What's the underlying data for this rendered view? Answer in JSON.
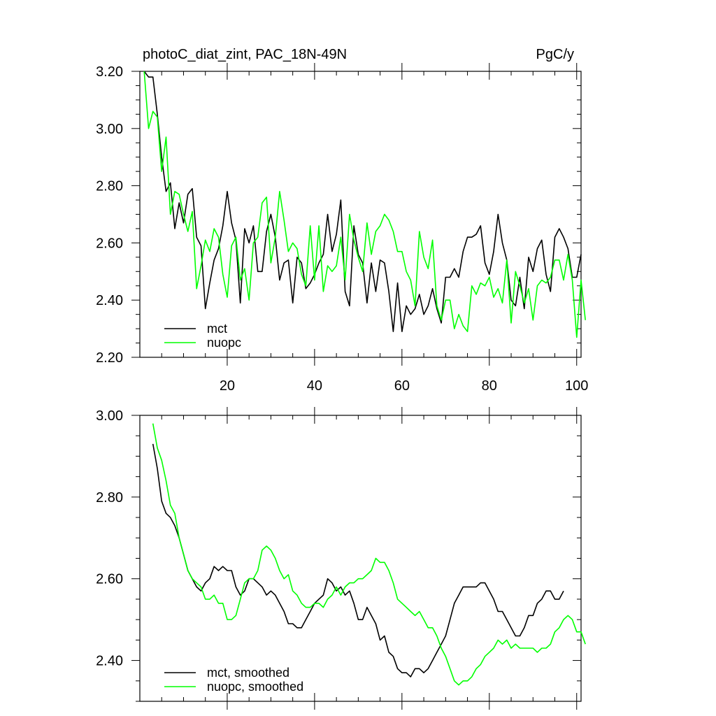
{
  "chart_data": [
    {
      "type": "line",
      "title": "photoC_diat_zint, PAC_18N-49N",
      "units": "PgC/y",
      "xlim": [
        0,
        101
      ],
      "ylim": [
        2.2,
        3.2
      ],
      "xticks": [
        20,
        40,
        60,
        80,
        100
      ],
      "yticks": [
        2.2,
        2.4,
        2.6,
        2.8,
        3.0,
        3.2
      ],
      "xtick_labels": [
        "20",
        "40",
        "60",
        "80",
        "100"
      ],
      "ytick_labels": [
        "2.20",
        "2.40",
        "2.60",
        "2.80",
        "3.00",
        "3.20"
      ],
      "legend_position": "bottom-left",
      "series": [
        {
          "name": "mct",
          "color": "#000000",
          "x_start": 1,
          "values": [
            3.2,
            3.18,
            3.18,
            3.05,
            2.9,
            2.78,
            2.81,
            2.65,
            2.74,
            2.67,
            2.77,
            2.79,
            2.62,
            2.59,
            2.37,
            2.46,
            2.54,
            2.58,
            2.66,
            2.78,
            2.67,
            2.61,
            2.39,
            2.65,
            2.6,
            2.66,
            2.5,
            2.5,
            2.64,
            2.7,
            2.62,
            2.47,
            2.53,
            2.54,
            2.39,
            2.55,
            2.53,
            2.44,
            2.46,
            2.49,
            2.53,
            2.56,
            2.7,
            2.57,
            2.63,
            2.75,
            2.43,
            2.38,
            2.66,
            2.56,
            2.53,
            2.39,
            2.53,
            2.43,
            2.54,
            2.53,
            2.43,
            2.29,
            2.46,
            2.29,
            2.38,
            2.35,
            2.37,
            2.42,
            2.35,
            2.38,
            2.44,
            2.37,
            2.32,
            2.48,
            2.48,
            2.51,
            2.48,
            2.57,
            2.62,
            2.62,
            2.63,
            2.66,
            2.53,
            2.49,
            2.57,
            2.7,
            2.6,
            2.54,
            2.4,
            2.38,
            2.48,
            2.37,
            2.55,
            2.5,
            2.58,
            2.61,
            2.49,
            2.43,
            2.62,
            2.65,
            2.62,
            2.58,
            2.48,
            2.48,
            2.56
          ]
        },
        {
          "name": "nuopc",
          "color": "#00ff00",
          "x_start": 1,
          "values": [
            3.2,
            3.0,
            3.06,
            3.04,
            2.85,
            2.97,
            2.7,
            2.78,
            2.77,
            2.7,
            2.64,
            2.71,
            2.44,
            2.52,
            2.61,
            2.57,
            2.65,
            2.62,
            2.49,
            2.41,
            2.59,
            2.62,
            2.47,
            2.51,
            2.4,
            2.6,
            2.62,
            2.74,
            2.76,
            2.53,
            2.62,
            2.78,
            2.68,
            2.57,
            2.6,
            2.58,
            2.49,
            2.45,
            2.66,
            2.47,
            2.66,
            2.43,
            2.52,
            2.5,
            2.52,
            2.62,
            2.47,
            2.7,
            2.61,
            2.55,
            2.5,
            2.67,
            2.56,
            2.64,
            2.66,
            2.7,
            2.68,
            2.64,
            2.57,
            2.57,
            2.5,
            2.47,
            2.38,
            2.64,
            2.55,
            2.51,
            2.61,
            2.38,
            2.33,
            2.4,
            2.4,
            2.3,
            2.35,
            2.31,
            2.29,
            2.45,
            2.42,
            2.46,
            2.45,
            2.48,
            2.41,
            2.44,
            2.39,
            2.54,
            2.32,
            2.5,
            2.45,
            2.39,
            2.44,
            2.33,
            2.45,
            2.47,
            2.46,
            2.48,
            2.54,
            2.54,
            2.47,
            2.56,
            2.47,
            2.27,
            2.47,
            2.33
          ]
        }
      ]
    },
    {
      "type": "line",
      "title": "",
      "xlim": [
        0,
        101
      ],
      "ylim": [
        2.3,
        3.0
      ],
      "xticks": [
        20,
        40,
        60,
        80,
        100
      ],
      "yticks": [
        2.4,
        2.6,
        2.8,
        3.0
      ],
      "ytick_labels": [
        "2.40",
        "2.60",
        "2.80",
        "3.00"
      ],
      "legend_position": "bottom-left",
      "series": [
        {
          "name": "mct, smoothed",
          "color": "#000000",
          "x_start": 3,
          "values": [
            2.93,
            2.87,
            2.79,
            2.76,
            2.75,
            2.73,
            2.7,
            2.66,
            2.62,
            2.6,
            2.58,
            2.57,
            2.59,
            2.6,
            2.63,
            2.62,
            2.63,
            2.62,
            2.62,
            2.58,
            2.56,
            2.57,
            2.6,
            2.6,
            2.59,
            2.58,
            2.56,
            2.57,
            2.56,
            2.54,
            2.52,
            2.49,
            2.49,
            2.48,
            2.48,
            2.5,
            2.52,
            2.54,
            2.55,
            2.56,
            2.6,
            2.59,
            2.57,
            2.58,
            2.56,
            2.57,
            2.54,
            2.5,
            2.5,
            2.53,
            2.51,
            2.49,
            2.45,
            2.46,
            2.42,
            2.41,
            2.38,
            2.37,
            2.37,
            2.36,
            2.38,
            2.38,
            2.37,
            2.38,
            2.4,
            2.42,
            2.44,
            2.46,
            2.5,
            2.54,
            2.56,
            2.58,
            2.58,
            2.58,
            2.58,
            2.59,
            2.59,
            2.57,
            2.55,
            2.52,
            2.52,
            2.5,
            2.48,
            2.46,
            2.46,
            2.48,
            2.51,
            2.51,
            2.54,
            2.55,
            2.57,
            2.57,
            2.55,
            2.55,
            2.57
          ]
        },
        {
          "name": "nuopc, smoothed",
          "color": "#00ff00",
          "x_start": 3,
          "values": [
            2.98,
            2.92,
            2.89,
            2.84,
            2.78,
            2.76,
            2.7,
            2.66,
            2.62,
            2.6,
            2.59,
            2.58,
            2.55,
            2.55,
            2.56,
            2.54,
            2.54,
            2.5,
            2.5,
            2.51,
            2.55,
            2.59,
            2.6,
            2.6,
            2.62,
            2.67,
            2.68,
            2.67,
            2.65,
            2.62,
            2.6,
            2.61,
            2.57,
            2.56,
            2.54,
            2.53,
            2.53,
            2.54,
            2.54,
            2.53,
            2.55,
            2.56,
            2.58,
            2.56,
            2.58,
            2.59,
            2.59,
            2.6,
            2.6,
            2.61,
            2.62,
            2.65,
            2.64,
            2.64,
            2.62,
            2.59,
            2.55,
            2.54,
            2.53,
            2.52,
            2.51,
            2.52,
            2.5,
            2.48,
            2.48,
            2.46,
            2.43,
            2.41,
            2.38,
            2.35,
            2.34,
            2.35,
            2.35,
            2.36,
            2.38,
            2.39,
            2.41,
            2.42,
            2.43,
            2.45,
            2.44,
            2.45,
            2.43,
            2.44,
            2.43,
            2.43,
            2.43,
            2.43,
            2.42,
            2.43,
            2.43,
            2.44,
            2.47,
            2.48,
            2.5,
            2.51,
            2.5,
            2.47,
            2.47,
            2.44
          ]
        }
      ]
    }
  ]
}
